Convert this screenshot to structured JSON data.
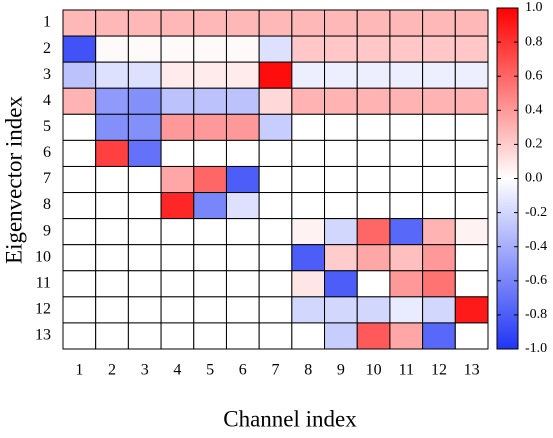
{
  "chart_data": {
    "type": "heatmap",
    "x_label": "Channel index",
    "y_label": "Eigenvector index",
    "x_categories": [
      "1",
      "2",
      "3",
      "4",
      "5",
      "6",
      "7",
      "8",
      "9",
      "10",
      "11",
      "12",
      "13"
    ],
    "y_categories": [
      "1",
      "2",
      "3",
      "4",
      "5",
      "6",
      "7",
      "8",
      "9",
      "10",
      "11",
      "12",
      "13"
    ],
    "z": [
      [
        0.28,
        0.28,
        0.28,
        0.28,
        0.28,
        0.28,
        0.28,
        0.28,
        0.28,
        0.28,
        0.28,
        0.28,
        0.28
      ],
      [
        -0.85,
        0.02,
        0.02,
        0.02,
        0.02,
        0.02,
        -0.15,
        0.22,
        0.22,
        0.22,
        0.22,
        0.22,
        0.22
      ],
      [
        -0.3,
        -0.15,
        -0.15,
        0.08,
        0.08,
        0.08,
        0.95,
        -0.08,
        -0.08,
        -0.08,
        -0.08,
        -0.08,
        -0.08
      ],
      [
        0.3,
        -0.5,
        -0.55,
        -0.3,
        -0.3,
        -0.3,
        0.15,
        0.3,
        0.3,
        0.3,
        0.3,
        0.3,
        0.3
      ],
      [
        0,
        -0.55,
        -0.55,
        0.4,
        0.4,
        0.4,
        -0.25,
        0,
        0,
        0,
        0,
        0,
        0
      ],
      [
        0,
        0.75,
        -0.7,
        0,
        0,
        0,
        0,
        0,
        0,
        0,
        0,
        0,
        0
      ],
      [
        0,
        0,
        0,
        0.35,
        0.6,
        -0.8,
        0,
        0,
        0,
        0,
        0,
        0,
        0
      ],
      [
        0,
        0,
        0,
        0.85,
        -0.6,
        -0.15,
        0,
        0,
        0,
        0,
        0,
        0,
        0
      ],
      [
        0,
        0,
        0,
        0,
        0,
        0,
        0,
        0.05,
        -0.2,
        0.6,
        -0.75,
        0.3,
        0.05
      ],
      [
        0,
        0,
        0,
        0,
        0,
        0,
        0,
        -0.8,
        0.2,
        0.35,
        0.25,
        0.4,
        0
      ],
      [
        0,
        0,
        0,
        0,
        0,
        0,
        0,
        0.1,
        -0.8,
        0,
        0.4,
        0.55,
        0
      ],
      [
        0,
        0,
        0,
        0,
        0,
        0,
        0,
        -0.2,
        -0.2,
        -0.2,
        -0.1,
        -0.2,
        0.9
      ],
      [
        0,
        0,
        0,
        0,
        0,
        0,
        0,
        0,
        -0.25,
        0.65,
        0.35,
        -0.75,
        0
      ]
    ],
    "colors": [
      "#2035f5",
      "#ffffff",
      "#ff0000"
    ],
    "zlim": [
      -1,
      1
    ],
    "zticks": [
      {
        "value": -1,
        "label": "-1.0"
      },
      -0.8,
      -0.6,
      -0.4,
      -0.2,
      {
        "value": 0,
        "label": "0.0"
      },
      0.2,
      0.4,
      0.6,
      0.8,
      {
        "value": 1,
        "label": "1.0"
      }
    ]
  }
}
